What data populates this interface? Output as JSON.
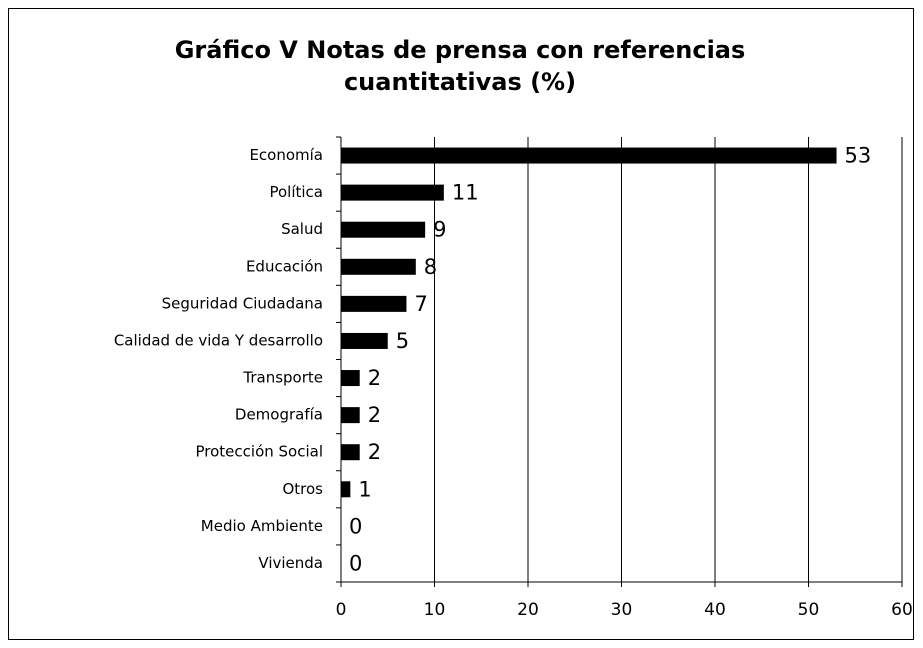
{
  "chart_data": {
    "type": "bar",
    "orientation": "horizontal",
    "title": "Gráfico V Notas de prensa con referencias cuantitativas (%)",
    "categories": [
      "Economía",
      "Política",
      "Salud",
      "Educación",
      "Seguridad Ciudadana",
      "Calidad de vida Y desarrollo",
      "Transporte",
      "Demografía",
      "Protección Social",
      "Otros",
      "Medio Ambiente",
      "Vivienda"
    ],
    "values": [
      53,
      11,
      9,
      8,
      7,
      5,
      2,
      2,
      2,
      1,
      0,
      0
    ],
    "color": "#000000",
    "xlim": [
      0,
      60
    ],
    "xticks": [
      0,
      10,
      20,
      30,
      40,
      50,
      60
    ],
    "grid": true
  }
}
